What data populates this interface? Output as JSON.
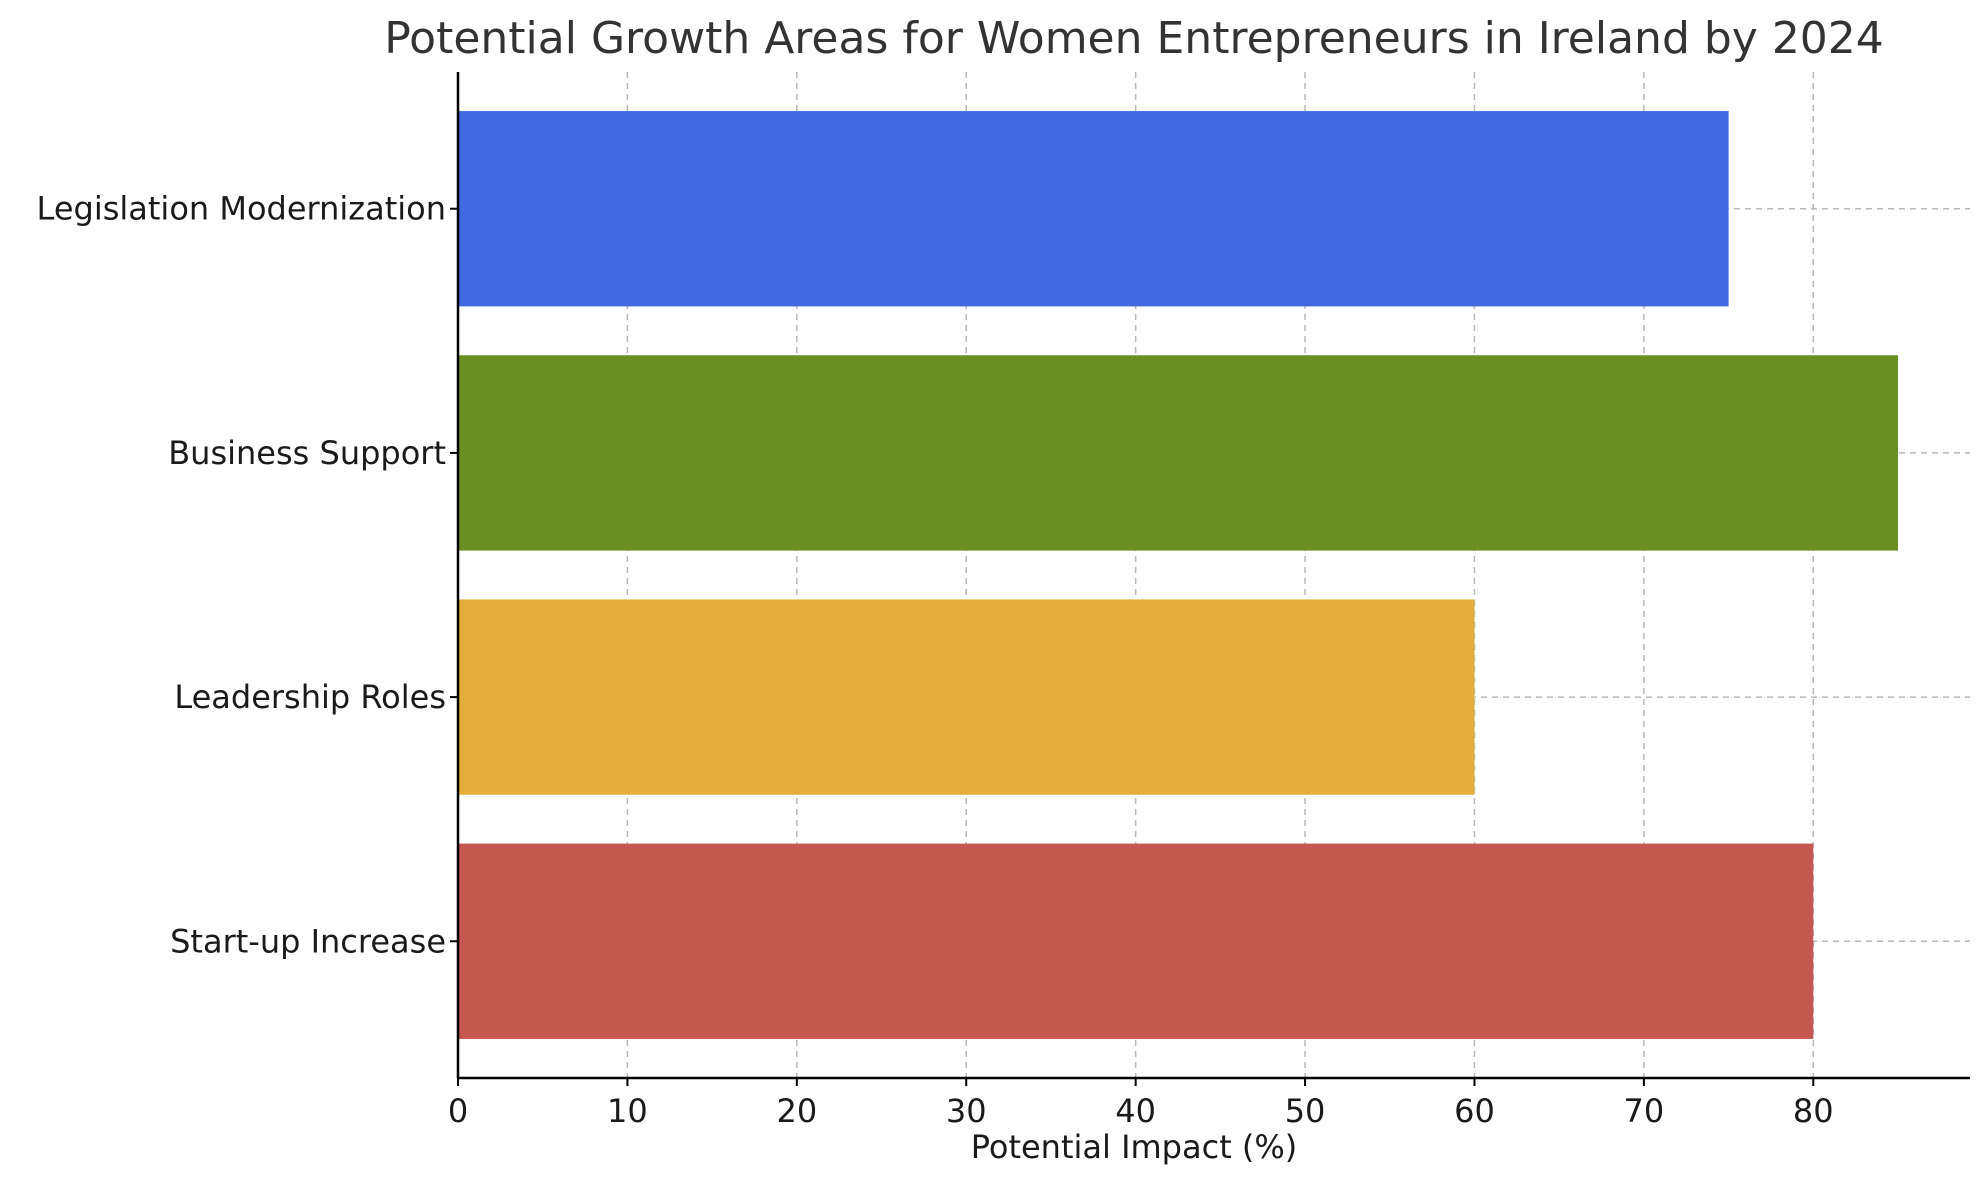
{
  "chart_data": {
    "type": "bar",
    "orientation": "horizontal",
    "title": "Potential Growth Areas for Women Entrepreneurs in Ireland by 2024",
    "xlabel": "Potential Impact (%)",
    "ylabel": "",
    "categories": [
      "Start-up Increase",
      "Leadership Roles",
      "Business Support",
      "Legislation Modernization"
    ],
    "values": [
      80,
      60,
      85,
      75
    ],
    "colors": [
      "#c4574f",
      "#e3ad3a",
      "#6b8e23",
      "#4169e1"
    ],
    "xlim": [
      0,
      89.25
    ],
    "xticks": [
      0,
      10,
      20,
      30,
      40,
      50,
      60,
      70,
      80
    ],
    "grid": true,
    "axes_color": "#000000",
    "grid_color": "#b8b8b8"
  }
}
